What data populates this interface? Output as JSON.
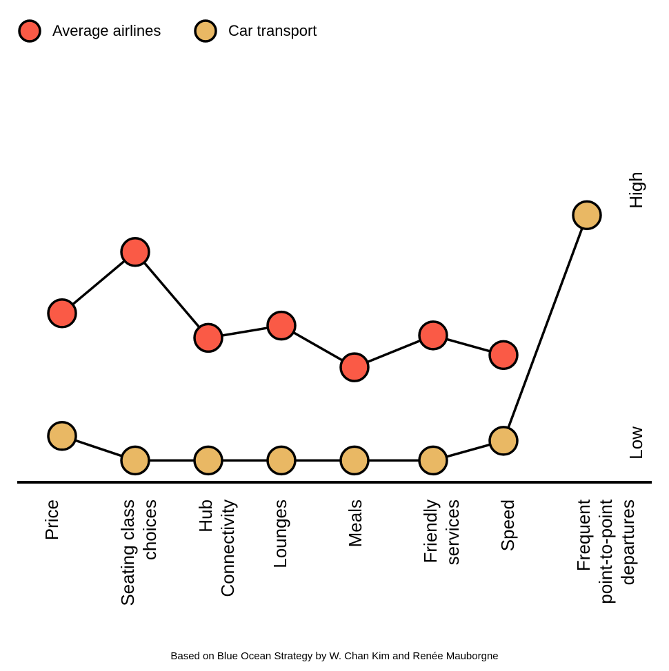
{
  "chart_data": {
    "type": "line",
    "categories": [
      "Price",
      "Seating class\nchoices",
      "Hub\nConnectivity",
      "Lounges",
      "Meals",
      "Friendly\nservices",
      "Speed",
      "Frequent\npoint-to-point\ndepartures"
    ],
    "series": [
      {
        "name": "Average airlines",
        "color": "#fa5a46",
        "values": [
          6,
          8.5,
          5,
          5.5,
          3.8,
          5.1,
          4.3,
          null
        ]
      },
      {
        "name": "Car transport",
        "color": "#e9b864",
        "values": [
          1,
          0,
          0,
          0,
          0,
          0,
          0.8,
          10
        ]
      }
    ],
    "ylim": [
      -1,
      18
    ],
    "y_high_label": "High",
    "y_low_label": "Low",
    "source": "Based on Blue Ocean Strategy by W. Chan Kim and Renée Mauborgne"
  }
}
